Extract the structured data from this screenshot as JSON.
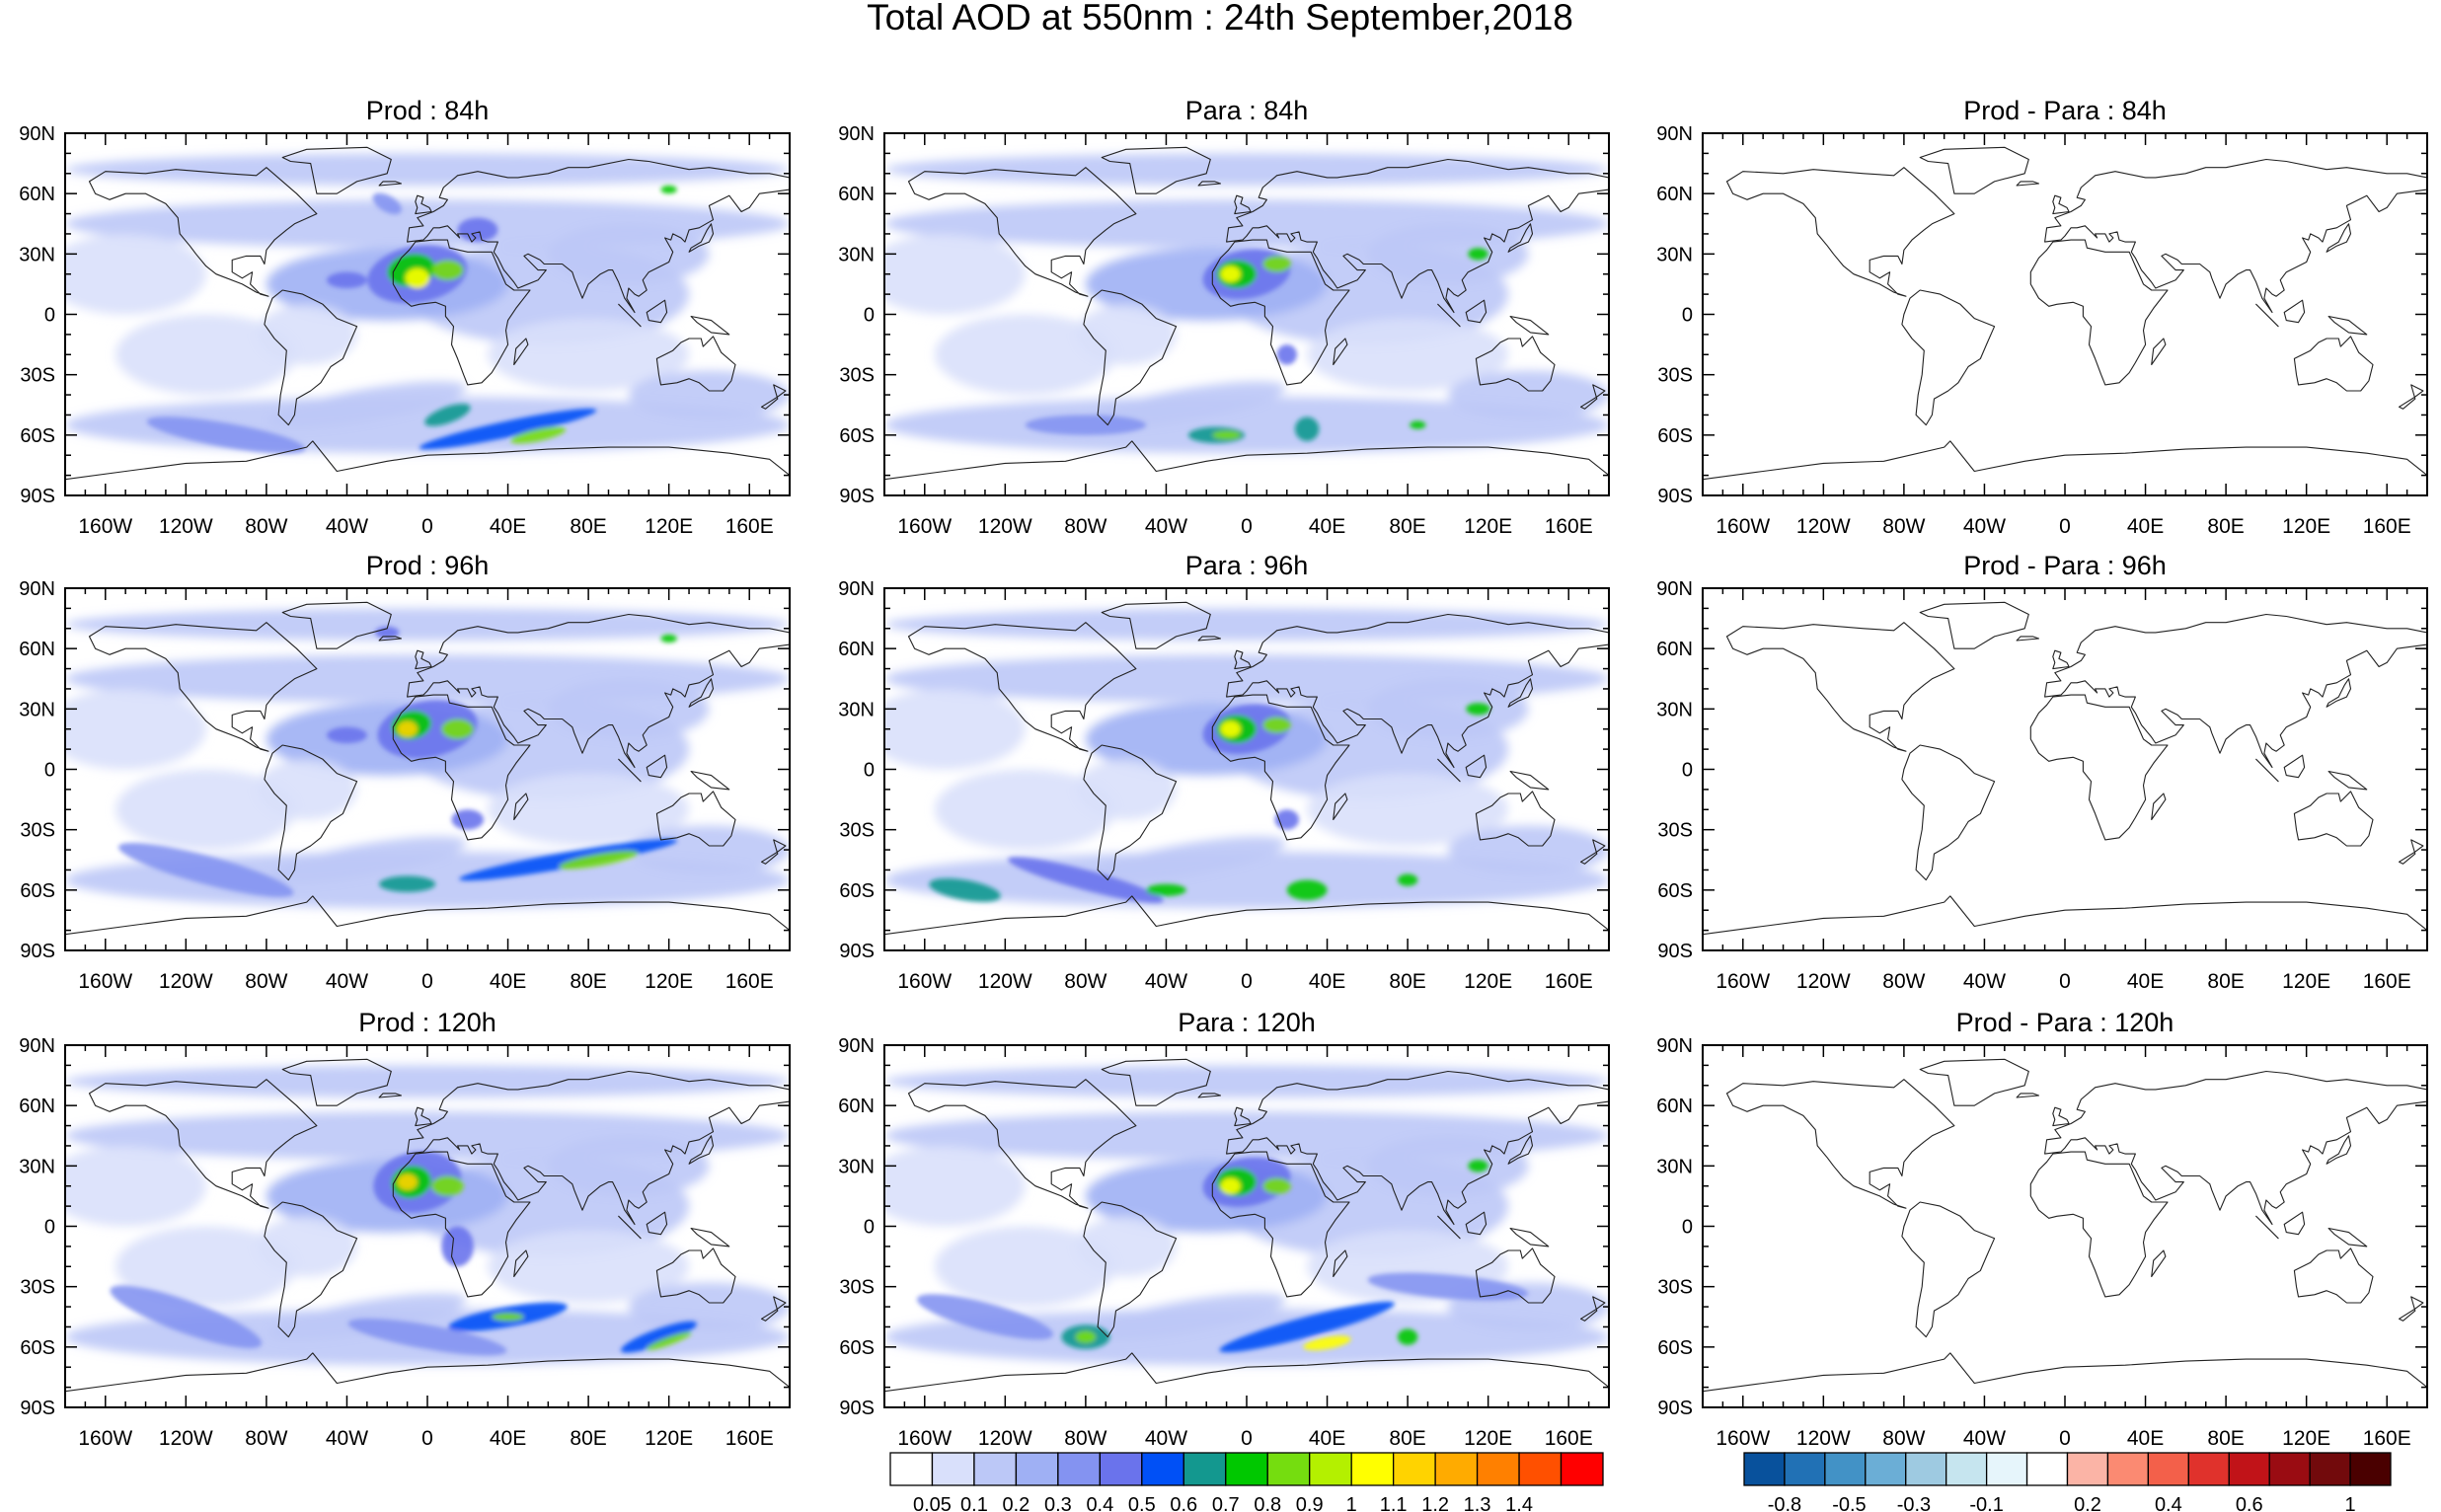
{
  "title": "Total AOD at 550nm : 24th September,2018",
  "lat_labels": [
    "90N",
    "60N",
    "30N",
    "0",
    "30S",
    "60S",
    "90S"
  ],
  "lon_labels": [
    "160W",
    "120W",
    "80W",
    "40W",
    "0",
    "40E",
    "80E",
    "120E",
    "160E"
  ],
  "lon_label_values": [
    -160,
    -120,
    -80,
    -40,
    0,
    40,
    80,
    120,
    160
  ],
  "lat_label_values": [
    90,
    60,
    30,
    0,
    -30,
    -60,
    -90
  ],
  "panels": [
    {
      "title": "Prod : 84h",
      "type": "aod"
    },
    {
      "title": "Para : 84h",
      "type": "aod"
    },
    {
      "title": "Prod - Para : 84h",
      "type": "diff"
    },
    {
      "title": "Prod : 96h",
      "type": "aod"
    },
    {
      "title": "Para : 96h",
      "type": "aod"
    },
    {
      "title": "Prod - Para : 96h",
      "type": "diff"
    },
    {
      "title": "Prod : 120h",
      "type": "aod"
    },
    {
      "title": "Para : 120h",
      "type": "aod"
    },
    {
      "title": "Prod - Para : 120h",
      "type": "diff"
    }
  ],
  "aod_colorbar": {
    "colors": [
      "#ffffff",
      "#d9e0fb",
      "#bcc8f7",
      "#9fb0f4",
      "#8493f1",
      "#6a73ec",
      "#0050f6",
      "#13988f",
      "#00c800",
      "#75dd0f",
      "#b4f000",
      "#ffff00",
      "#ffd300",
      "#ffab00",
      "#ff8000",
      "#ff5000",
      "#ff0000"
    ],
    "labels": [
      "0.05",
      "0.1",
      "0.2",
      "0.3",
      "0.4",
      "0.5",
      "0.6",
      "0.7",
      "0.8",
      "0.9",
      "1",
      "1.1",
      "1.2",
      "1.3",
      "1.4"
    ]
  },
  "diff_colorbar": {
    "colors": [
      "#08519c",
      "#2171b5",
      "#4292c6",
      "#6baed6",
      "#9ecae1",
      "#c6e5ef",
      "#e6f5fb",
      "#ffffff",
      "#fbb4a6",
      "#fb8a72",
      "#f3604a",
      "#e0322c",
      "#c11318",
      "#9a0c12",
      "#720a0c",
      "#4a0000"
    ],
    "labels": [
      "-0.8",
      "-0.5",
      "-0.3",
      "-0.1",
      "0.2",
      "0.4",
      "0.6",
      "1"
    ]
  }
}
